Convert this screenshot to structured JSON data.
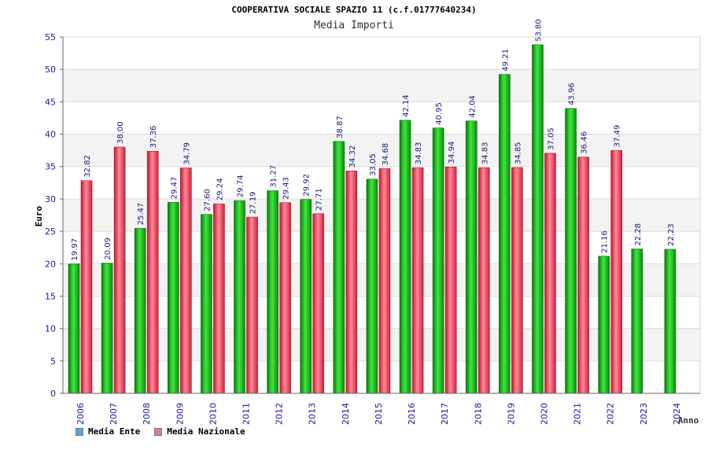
{
  "chart_data": {
    "type": "bar",
    "title": "COOPERATIVA SOCIALE SPAZIO 11 (c.f.01777640234)",
    "subtitle": "Media Importi",
    "xlabel": "Anno",
    "ylabel": "Euro",
    "ylim": [
      0,
      55
    ],
    "yticks": [
      0,
      5,
      10,
      15,
      20,
      25,
      30,
      35,
      40,
      45,
      50,
      55
    ],
    "categories": [
      "2006",
      "2007",
      "2008",
      "2009",
      "2010",
      "2011",
      "2012",
      "2013",
      "2014",
      "2015",
      "2016",
      "2017",
      "2018",
      "2019",
      "2020",
      "2021",
      "2022",
      "2023",
      "2024"
    ],
    "series": [
      {
        "name": "Media Ente",
        "color": "#22aa22",
        "values": [
          19.97,
          20.09,
          25.47,
          29.47,
          27.6,
          29.74,
          31.27,
          29.92,
          38.87,
          33.05,
          42.14,
          40.95,
          42.04,
          49.21,
          53.8,
          43.96,
          21.16,
          22.28,
          22.23
        ]
      },
      {
        "name": "Media Nazionale",
        "color": "#e8344a",
        "values": [
          32.82,
          38.0,
          37.36,
          34.79,
          29.24,
          27.19,
          29.43,
          27.71,
          34.32,
          34.68,
          34.83,
          34.94,
          34.83,
          34.85,
          37.05,
          36.46,
          37.49,
          null,
          null
        ]
      }
    ],
    "legend": [
      {
        "label": "Media Ente",
        "color": "#5aa0e6"
      },
      {
        "label": "Media Nazionale",
        "color": "#e07aa0"
      }
    ]
  }
}
